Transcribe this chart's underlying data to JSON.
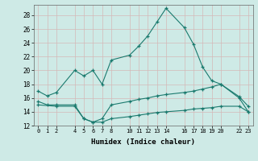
{
  "line1_x": [
    0,
    1,
    2,
    4,
    5,
    6,
    7,
    8,
    10,
    11,
    12,
    13,
    14,
    16,
    17,
    18,
    19,
    20,
    22,
    23
  ],
  "line1_y": [
    17.0,
    16.3,
    16.8,
    20.0,
    19.2,
    20.0,
    18.0,
    21.5,
    22.2,
    23.5,
    25.0,
    27.0,
    29.0,
    26.2,
    23.8,
    20.5,
    18.5,
    18.0,
    16.0,
    14.0
  ],
  "line2_x": [
    0,
    1,
    2,
    4,
    5,
    6,
    7,
    8,
    10,
    11,
    12,
    13,
    14,
    16,
    17,
    18,
    19,
    20,
    22,
    23
  ],
  "line2_y": [
    15.5,
    15.0,
    15.0,
    15.0,
    13.0,
    12.5,
    13.0,
    15.0,
    15.5,
    15.8,
    16.0,
    16.3,
    16.5,
    16.8,
    17.0,
    17.3,
    17.6,
    18.0,
    16.2,
    14.8
  ],
  "line3_x": [
    0,
    2,
    4,
    5,
    6,
    7,
    8,
    10,
    11,
    12,
    13,
    14,
    16,
    17,
    18,
    19,
    20,
    22,
    23
  ],
  "line3_y": [
    15.0,
    14.8,
    14.8,
    13.0,
    12.5,
    12.5,
    13.0,
    13.3,
    13.5,
    13.7,
    13.9,
    14.0,
    14.2,
    14.4,
    14.5,
    14.6,
    14.8,
    14.8,
    14.0
  ],
  "xlim": [
    -0.5,
    23.5
  ],
  "ylim": [
    12,
    29.5
  ],
  "yticks": [
    12,
    14,
    16,
    18,
    20,
    22,
    24,
    26,
    28
  ],
  "xticks": [
    0,
    1,
    2,
    4,
    5,
    6,
    7,
    8,
    10,
    11,
    12,
    13,
    14,
    16,
    17,
    18,
    19,
    20,
    22,
    23
  ],
  "xlabel": "Humidex (Indice chaleur)",
  "line_color": "#1a7a6e",
  "bg_color": "#ceeae6",
  "grid_color": "#b8d8d4"
}
